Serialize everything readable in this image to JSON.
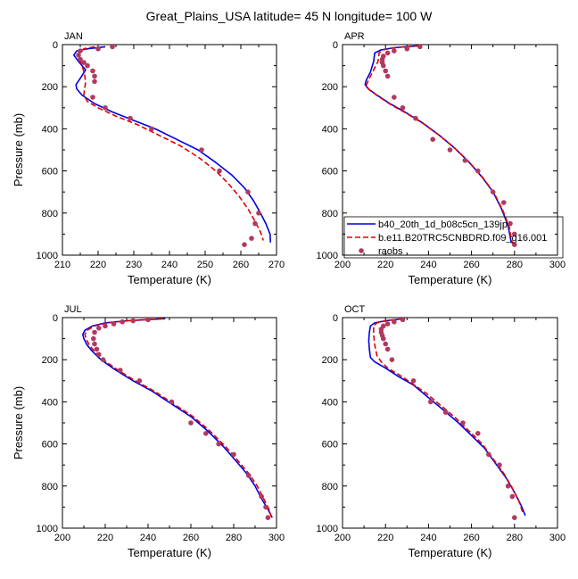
{
  "figure": {
    "title": "Great_Plains_USA  latitude= 45 N longitude= 100 W"
  },
  "colors": {
    "series1": "#0000e0",
    "series2": "#e00000",
    "series3": "#b03a5e",
    "axis": "#000000"
  },
  "chart_data": [
    {
      "type": "line",
      "panel": "JAN",
      "xlabel": "Temperature (K)",
      "ylabel": "Pressure (mb)",
      "xlim": [
        210,
        270
      ],
      "ylim": [
        1000,
        0
      ],
      "xticks": [
        210,
        220,
        230,
        240,
        250,
        260,
        270
      ],
      "yticks": [
        0,
        200,
        400,
        600,
        800,
        1000
      ],
      "series": [
        {
          "name": "b40_20th_1d_b08c5cn_139jp",
          "style": "line",
          "color": "#0000e0",
          "x": [
            222,
            217,
            214,
            213.2,
            214.5,
            216.5,
            215,
            213.8,
            214,
            215.5,
            219,
            224,
            230,
            236,
            242,
            248,
            253,
            257.5,
            261,
            263.5,
            265.5,
            267,
            268.2,
            268.3
          ],
          "y": [
            10,
            20,
            30,
            50,
            80,
            120,
            160,
            190,
            210,
            240,
            280,
            320,
            360,
            400,
            450,
            500,
            560,
            620,
            680,
            740,
            800,
            850,
            900,
            940
          ]
        },
        {
          "name": "b.e11.B20TRC5CNBDRD.f09_g16.001",
          "style": "dashed",
          "color": "#e00000",
          "x": [
            219,
            216,
            214.5,
            214.8,
            215.5,
            216.2,
            216.5,
            216.2,
            216,
            217,
            220,
            225,
            231,
            237,
            243,
            248.5,
            253,
            256.5,
            259.5,
            262,
            264,
            265.5,
            266.3
          ],
          "y": [
            10,
            20,
            40,
            70,
            100,
            140,
            180,
            210,
            240,
            270,
            300,
            340,
            380,
            430,
            480,
            540,
            600,
            660,
            720,
            780,
            840,
            890,
            930
          ]
        },
        {
          "name": "raobs",
          "style": "markers",
          "color": "#b03a5e",
          "x": [
            224,
            220,
            215,
            214.5,
            215,
            216,
            217,
            218.5,
            219,
            219,
            218.5,
            222,
            229,
            235,
            249,
            254,
            262,
            265,
            264,
            263,
            261
          ],
          "y": [
            10,
            20,
            30,
            50,
            70,
            85,
            100,
            125,
            150,
            175,
            250,
            300,
            350,
            400,
            500,
            600,
            700,
            800,
            850,
            920,
            950
          ]
        }
      ]
    },
    {
      "type": "line",
      "panel": "APR",
      "xlabel": "Temperature (K)",
      "ylabel": "",
      "xlim": [
        200,
        300
      ],
      "ylim": [
        1000,
        0
      ],
      "xticks": [
        200,
        220,
        240,
        260,
        280,
        300
      ],
      "yticks": [
        0,
        200,
        400,
        600,
        800,
        1000
      ],
      "legend": {
        "placement": "bottom-right",
        "entries": [
          "b40_20th_1d_b08c5cn_139jp",
          "b.e11.B20TRC5CNBDRD.f09_g16.001",
          "raobs"
        ]
      },
      "series": [
        {
          "name": "b40_20th_1d_b08c5cn_139jp",
          "style": "line",
          "color": "#0000e0",
          "x": [
            236,
            224,
            218,
            215,
            214.5,
            213,
            211,
            210.5,
            212,
            216,
            222,
            229,
            237,
            245,
            252,
            259,
            265,
            270,
            274,
            277,
            278.5
          ],
          "y": [
            5,
            15,
            25,
            40,
            80,
            130,
            170,
            190,
            210,
            240,
            280,
            320,
            370,
            430,
            490,
            560,
            630,
            700,
            780,
            860,
            940
          ]
        },
        {
          "name": "b.e11.B20TRC5CNBDRD.f09_g16.001",
          "style": "dashed",
          "color": "#e00000",
          "x": [
            236,
            224,
            219,
            217,
            216.5,
            214,
            212,
            211,
            212.5,
            216.5,
            222.5,
            229.5,
            237.5,
            245.5,
            252.5,
            259.5,
            265.5,
            270.5,
            274.5,
            277.5,
            279
          ],
          "y": [
            5,
            15,
            25,
            40,
            80,
            130,
            170,
            195,
            215,
            245,
            285,
            325,
            375,
            435,
            495,
            565,
            635,
            705,
            785,
            865,
            945
          ]
        },
        {
          "name": "raobs",
          "style": "markers",
          "color": "#b03a5e",
          "x": [
            236,
            230,
            224,
            221,
            219,
            218.5,
            218.5,
            219,
            220,
            221,
            224,
            228,
            234,
            242,
            250,
            257,
            263,
            270,
            275,
            278,
            280,
            280
          ],
          "y": [
            10,
            20,
            30,
            40,
            55,
            70,
            85,
            100,
            125,
            150,
            250,
            300,
            350,
            450,
            500,
            550,
            600,
            700,
            750,
            850,
            900,
            950
          ]
        }
      ]
    },
    {
      "type": "line",
      "panel": "JUL",
      "xlabel": "Temperature (K)",
      "ylabel": "Pressure (mb)",
      "xlim": [
        200,
        300
      ],
      "ylim": [
        1000,
        0
      ],
      "xticks": [
        200,
        220,
        240,
        260,
        280,
        300
      ],
      "yticks": [
        0,
        200,
        400,
        600,
        800,
        1000
      ],
      "series": [
        {
          "name": "b40_20th_1d_b08c5cn_139jp",
          "style": "line",
          "color": "#0000e0",
          "x": [
            248,
            230,
            220,
            214,
            210.5,
            209.5,
            210,
            211.5,
            214,
            218,
            225,
            233,
            242,
            251,
            260,
            268,
            275,
            281,
            286,
            290,
            293,
            296,
            298
          ],
          "y": [
            5,
            15,
            25,
            40,
            60,
            80,
            100,
            130,
            160,
            200,
            250,
            300,
            350,
            410,
            470,
            540,
            610,
            680,
            740,
            800,
            860,
            910,
            950
          ]
        },
        {
          "name": "b.e11.B20TRC5CNBDRD.f09_g16.001",
          "style": "dashed",
          "color": "#e00000",
          "x": [
            247,
            231,
            221,
            215,
            211.5,
            210.5,
            211,
            212.5,
            215,
            219,
            226,
            234,
            243,
            252,
            261,
            269,
            276,
            282,
            287,
            291,
            294,
            296.5,
            297.5
          ],
          "y": [
            5,
            15,
            25,
            40,
            60,
            80,
            100,
            130,
            160,
            200,
            250,
            300,
            350,
            410,
            470,
            540,
            610,
            680,
            740,
            800,
            860,
            910,
            945
          ]
        },
        {
          "name": "raobs",
          "style": "markers",
          "color": "#b03a5e",
          "x": [
            240,
            233,
            228,
            224,
            220,
            217,
            215,
            214.5,
            215,
            216,
            217,
            219,
            227,
            236,
            251,
            260,
            267,
            273,
            280,
            287,
            293,
            295,
            296
          ],
          "y": [
            10,
            15,
            20,
            30,
            40,
            50,
            70,
            100,
            125,
            150,
            175,
            200,
            250,
            300,
            400,
            500,
            550,
            600,
            650,
            750,
            850,
            900,
            950
          ]
        }
      ]
    },
    {
      "type": "line",
      "panel": "OCT",
      "xlabel": "Temperature (K)",
      "ylabel": "",
      "xlim": [
        200,
        300
      ],
      "ylim": [
        1000,
        0
      ],
      "xticks": [
        200,
        220,
        240,
        260,
        280,
        300
      ],
      "yticks": [
        0,
        200,
        400,
        600,
        800,
        1000
      ],
      "series": [
        {
          "name": "b40_20th_1d_b08c5cn_139jp",
          "style": "line",
          "color": "#0000e0",
          "x": [
            229,
            220,
            215,
            213,
            212.5,
            212.2,
            212.5,
            213,
            215,
            220,
            226,
            233,
            240,
            247,
            254,
            260,
            266,
            271,
            276,
            280,
            283,
            285
          ],
          "y": [
            5,
            15,
            25,
            40,
            70,
            110,
            150,
            190,
            210,
            240,
            280,
            320,
            380,
            440,
            500,
            560,
            620,
            690,
            760,
            830,
            890,
            940
          ]
        },
        {
          "name": "b.e11.B20TRC5CNBDRD.f09_g16.001",
          "style": "dashed",
          "color": "#e00000",
          "x": [
            228,
            220,
            216,
            214.5,
            214.5,
            215,
            216,
            218,
            221,
            226,
            232,
            239,
            246,
            253,
            259,
            265,
            270,
            275,
            279,
            282,
            284
          ],
          "y": [
            5,
            15,
            25,
            40,
            80,
            130,
            180,
            210,
            240,
            270,
            310,
            360,
            420,
            480,
            540,
            600,
            670,
            740,
            810,
            870,
            930
          ]
        },
        {
          "name": "raobs",
          "style": "markers",
          "color": "#b03a5e",
          "x": [
            228,
            224,
            221,
            219,
            218,
            218,
            218.5,
            219,
            220,
            221,
            223,
            233,
            241,
            248,
            256,
            263,
            268,
            273,
            277,
            279,
            280
          ],
          "y": [
            10,
            20,
            30,
            40,
            55,
            70,
            85,
            100,
            125,
            150,
            200,
            300,
            400,
            450,
            500,
            550,
            650,
            700,
            800,
            850,
            950
          ]
        }
      ]
    }
  ]
}
